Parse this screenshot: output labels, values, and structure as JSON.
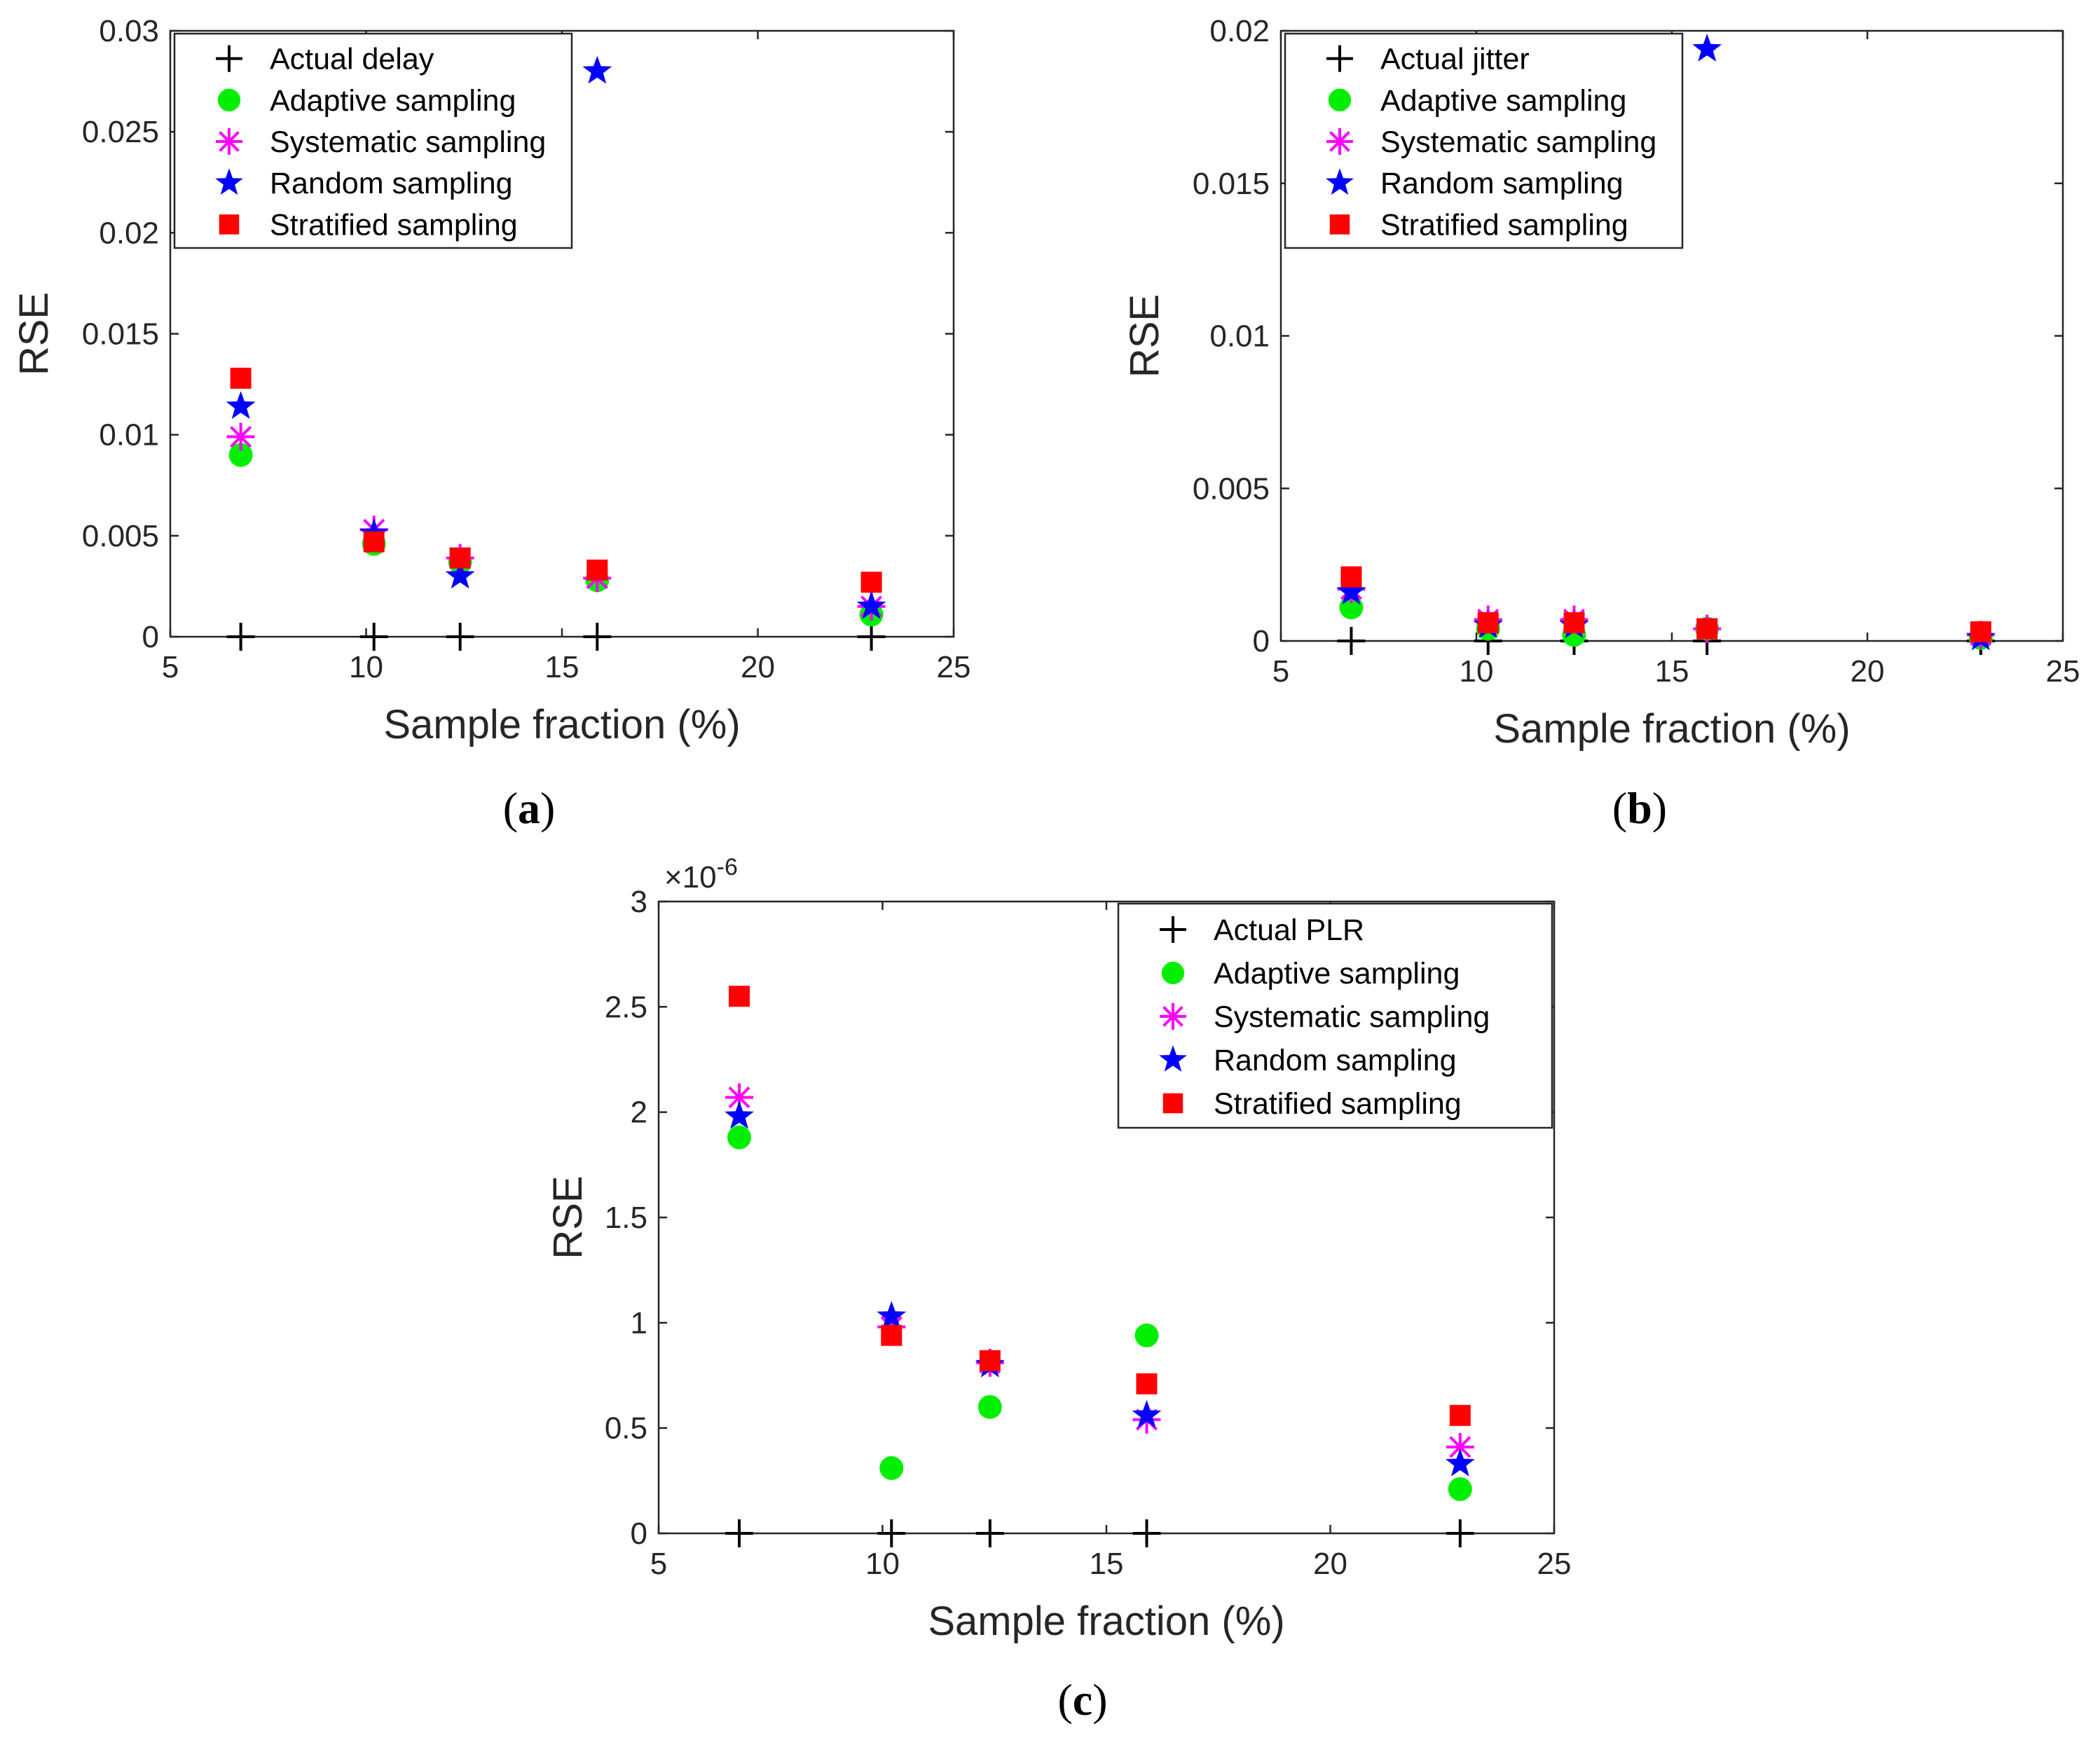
{
  "chart_data": [
    {
      "type": "scatter",
      "panel": "(a)",
      "panel_letter": "a",
      "xlabel": "Sample fraction (%)",
      "ylabel": "RSE",
      "xlim": [
        5,
        25
      ],
      "ylim": [
        0,
        0.03
      ],
      "xticks": [
        5,
        10,
        15,
        20,
        25
      ],
      "xtick_labels": [
        "5",
        "10",
        "15",
        "20",
        "25"
      ],
      "yticks": [
        0,
        0.005,
        0.01,
        0.015,
        0.02,
        0.025,
        0.03
      ],
      "ytick_labels": [
        "0",
        "0.005",
        "0.01",
        "0.015",
        "0.02",
        "0.025",
        "0.03"
      ],
      "exponent_label": "",
      "legend_position": "top-left",
      "series": [
        {
          "name": "Actual delay",
          "marker": "plus",
          "color": "#000000",
          "x": [
            6.8,
            10.2,
            12.4,
            15.9,
            22.9
          ],
          "y": [
            0,
            0,
            0,
            0,
            0
          ]
        },
        {
          "name": "Adaptive sampling",
          "marker": "circle",
          "color": "#00ee00",
          "x": [
            6.8,
            10.2,
            12.4,
            15.9,
            22.9
          ],
          "y": [
            0.009,
            0.0046,
            0.0037,
            0.0028,
            0.0011
          ]
        },
        {
          "name": "Systematic sampling",
          "marker": "asterisk",
          "color": "#ff00ff",
          "x": [
            6.8,
            10.2,
            12.4,
            15.9,
            22.9
          ],
          "y": [
            0.0099,
            0.0053,
            0.0039,
            0.0029,
            0.0015
          ]
        },
        {
          "name": "Random sampling",
          "marker": "star",
          "color": "#0000ff",
          "x": [
            6.8,
            10.2,
            12.4,
            15.9,
            22.9
          ],
          "y": [
            0.0114,
            0.0051,
            0.003,
            0.028,
            0.0015
          ]
        },
        {
          "name": "Stratified sampling",
          "marker": "square",
          "color": "#ff0000",
          "x": [
            6.8,
            10.2,
            12.4,
            15.9,
            22.9
          ],
          "y": [
            0.0128,
            0.0047,
            0.0039,
            0.0033,
            0.0027
          ]
        }
      ]
    },
    {
      "type": "scatter",
      "panel": "(b)",
      "panel_letter": "b",
      "xlabel": "Sample fraction (%)",
      "ylabel": "RSE",
      "xlim": [
        5,
        25
      ],
      "ylim": [
        0,
        0.02
      ],
      "xticks": [
        5,
        10,
        15,
        20,
        25
      ],
      "xtick_labels": [
        "5",
        "10",
        "15",
        "20",
        "25"
      ],
      "yticks": [
        0,
        0.005,
        0.01,
        0.015,
        0.02
      ],
      "ytick_labels": [
        "0",
        "0.005",
        "0.01",
        "0.015",
        "0.02"
      ],
      "exponent_label": "",
      "legend_position": "top-left",
      "series": [
        {
          "name": "Actual jitter",
          "marker": "plus",
          "color": "#000000",
          "x": [
            6.8,
            10.3,
            12.5,
            15.9,
            22.9
          ],
          "y": [
            0,
            0,
            0,
            0,
            0
          ]
        },
        {
          "name": "Adaptive sampling",
          "marker": "circle",
          "color": "#00ee00",
          "x": [
            6.8,
            10.3,
            12.5,
            15.9,
            22.9
          ],
          "y": [
            0.0011,
            0.0004,
            0.0002,
            0.0004,
            0.0001
          ]
        },
        {
          "name": "Systematic sampling",
          "marker": "asterisk",
          "color": "#ff00ff",
          "x": [
            6.8,
            10.3,
            12.5,
            15.9,
            22.9
          ],
          "y": [
            0.0017,
            0.0007,
            0.0007,
            0.0004,
            0.0002
          ]
        },
        {
          "name": "Random sampling",
          "marker": "star",
          "color": "#0000ff",
          "x": [
            6.8,
            10.3,
            12.5,
            15.9,
            22.9
          ],
          "y": [
            0.0016,
            0.0005,
            0.0005,
            0.0194,
            0.0001
          ]
        },
        {
          "name": "Stratified sampling",
          "marker": "square",
          "color": "#ff0000",
          "x": [
            6.8,
            10.3,
            12.5,
            15.9,
            22.9
          ],
          "y": [
            0.0021,
            0.0006,
            0.0006,
            0.0004,
            0.0003
          ]
        }
      ]
    },
    {
      "type": "scatter",
      "panel": "(c)",
      "panel_letter": "c",
      "xlabel": "Sample fraction (%)",
      "ylabel": "RSE",
      "xlim": [
        5,
        25
      ],
      "ylim": [
        0,
        3
      ],
      "xticks": [
        5,
        10,
        15,
        20,
        25
      ],
      "xtick_labels": [
        "5",
        "10",
        "15",
        "20",
        "25"
      ],
      "yticks": [
        0,
        0.5,
        1,
        1.5,
        2,
        2.5,
        3
      ],
      "ytick_labels": [
        "0",
        "0.5",
        "1",
        "1.5",
        "2",
        "2.5",
        "3"
      ],
      "exponent_label": "×10",
      "exponent_power": "-6",
      "legend_position": "top-right",
      "series": [
        {
          "name": "Actual PLR",
          "marker": "plus",
          "color": "#000000",
          "x": [
            6.8,
            10.2,
            12.4,
            15.9,
            22.9
          ],
          "y": [
            0,
            0,
            0,
            0,
            0
          ]
        },
        {
          "name": "Adaptive sampling",
          "marker": "circle",
          "color": "#00ee00",
          "x": [
            6.8,
            10.2,
            12.4,
            15.9,
            22.9
          ],
          "y": [
            1.88,
            0.31,
            0.6,
            0.94,
            0.21
          ]
        },
        {
          "name": "Systematic sampling",
          "marker": "asterisk",
          "color": "#ff00ff",
          "x": [
            6.8,
            10.2,
            12.4,
            15.9,
            22.9
          ],
          "y": [
            2.07,
            0.98,
            0.81,
            0.54,
            0.41
          ]
        },
        {
          "name": "Random sampling",
          "marker": "star",
          "color": "#0000ff",
          "x": [
            6.8,
            10.2,
            12.4,
            15.9,
            22.9
          ],
          "y": [
            1.98,
            1.03,
            0.8,
            0.56,
            0.33
          ]
        },
        {
          "name": "Stratified sampling",
          "marker": "square",
          "color": "#ff0000",
          "x": [
            6.8,
            10.2,
            12.4,
            15.9,
            22.9
          ],
          "y": [
            2.55,
            0.94,
            0.82,
            0.71,
            0.56
          ]
        }
      ]
    }
  ]
}
